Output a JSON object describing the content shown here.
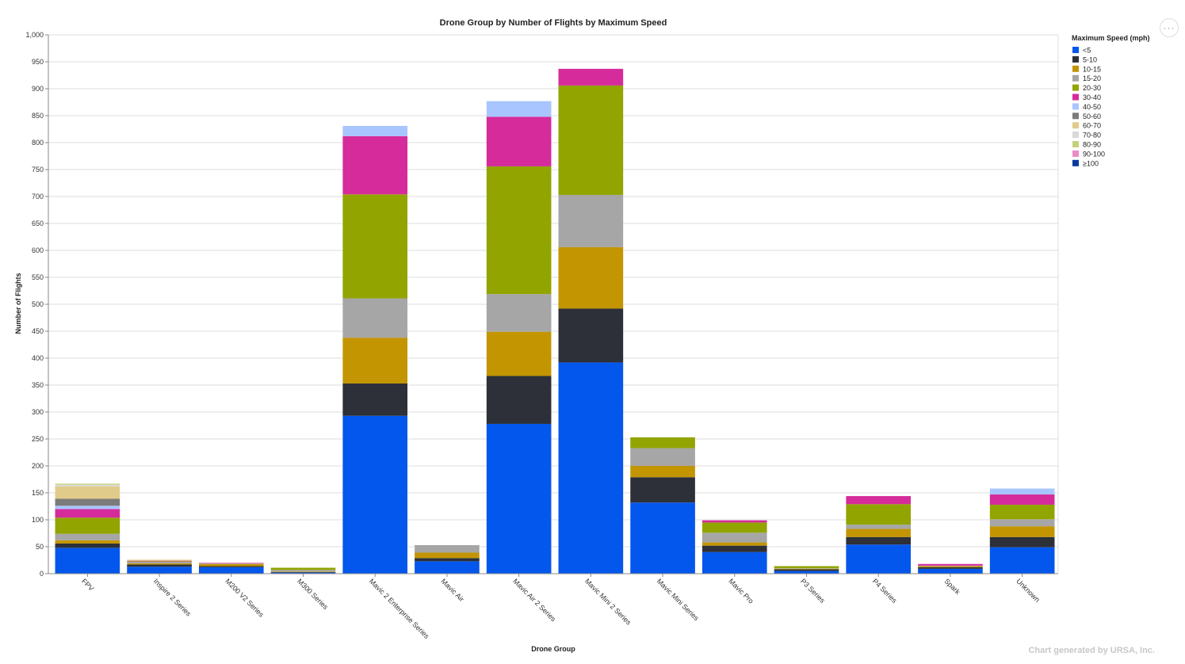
{
  "more_button": {
    "label": "···",
    "icon": "more-horizontal-icon"
  },
  "credit": "Chart generated by URSA, Inc.",
  "chart_data": {
    "type": "bar",
    "stacked": true,
    "title": "Drone Group by Number of Flights by Maximum Speed",
    "xlabel": "Drone Group",
    "ylabel": "Number of Flights",
    "ylim": [
      0,
      1000
    ],
    "yticks": [
      0,
      50,
      100,
      150,
      200,
      250,
      300,
      350,
      400,
      450,
      500,
      550,
      600,
      650,
      700,
      750,
      800,
      850,
      900,
      950,
      1000
    ],
    "ytick_labels": [
      "0",
      "50",
      "100",
      "150",
      "200",
      "250",
      "300",
      "350",
      "400",
      "450",
      "500",
      "550",
      "600",
      "650",
      "700",
      "750",
      "800",
      "850",
      "900",
      "950",
      "1,000"
    ],
    "grid": true,
    "legend": {
      "title": "Maximum Speed (mph)",
      "placement": "right"
    },
    "categories": [
      "FPV",
      "Inspire 2 Series",
      "M200 V2 Series",
      "M300 Series",
      "Mavic 2 Enterprise Series",
      "Mavic Air",
      "Mavic Air 2 Series",
      "Mavic Mini 2 Series",
      "Mavic Mini Series",
      "Mavic Pro",
      "P3 Series",
      "P4 Series",
      "Spark",
      "Unknown"
    ],
    "series": [
      {
        "name": "<5",
        "color": "#0457ec",
        "values": [
          48,
          13,
          12,
          2,
          293,
          23,
          278,
          392,
          132,
          40,
          5,
          54,
          9,
          49
        ]
      },
      {
        "name": "5-10",
        "color": "#2d3038",
        "values": [
          8,
          4,
          2,
          1,
          60,
          6,
          89,
          100,
          47,
          12,
          3,
          14,
          3,
          19
        ]
      },
      {
        "name": "10-15",
        "color": "#c39500",
        "values": [
          6,
          2,
          4,
          1,
          85,
          10,
          82,
          114,
          21,
          6,
          1,
          15,
          2,
          20
        ]
      },
      {
        "name": "15-20",
        "color": "#a6a6a6",
        "values": [
          12,
          3,
          1,
          3,
          73,
          14,
          70,
          97,
          33,
          18,
          1,
          8,
          1,
          13
        ]
      },
      {
        "name": "20-30",
        "color": "#92a400",
        "values": [
          30,
          1,
          0,
          4,
          193,
          0,
          237,
          203,
          20,
          19,
          4,
          38,
          0,
          27
        ]
      },
      {
        "name": "30-40",
        "color": "#d52b9b",
        "values": [
          16,
          1,
          1,
          0,
          108,
          0,
          92,
          31,
          0,
          4,
          0,
          15,
          3,
          19
        ]
      },
      {
        "name": "40-50",
        "color": "#a8c5ff",
        "values": [
          6,
          0,
          0,
          0,
          19,
          0,
          29,
          0,
          0,
          0,
          0,
          0,
          0,
          11
        ]
      },
      {
        "name": "50-60",
        "color": "#7b7b7b",
        "values": [
          13,
          0,
          0,
          0,
          0,
          0,
          0,
          0,
          0,
          0,
          0,
          0,
          0,
          0
        ]
      },
      {
        "name": "60-70",
        "color": "#e1cb8b",
        "values": [
          23,
          2,
          0,
          0,
          0,
          0,
          0,
          0,
          0,
          0,
          0,
          0,
          0,
          0
        ]
      },
      {
        "name": "70-80",
        "color": "#d9d9d9",
        "values": [
          3,
          0,
          0,
          0,
          0,
          0,
          0,
          0,
          0,
          0,
          0,
          0,
          0,
          0
        ]
      },
      {
        "name": "80-90",
        "color": "#c5cf7c",
        "values": [
          2,
          0,
          0,
          0,
          0,
          0,
          0,
          0,
          0,
          0,
          0,
          0,
          0,
          0
        ]
      },
      {
        "name": "90-100",
        "color": "#e98cc8",
        "values": [
          0,
          0,
          0,
          0,
          0,
          0,
          0,
          0,
          0,
          0,
          0,
          0,
          0,
          0
        ]
      },
      {
        "name": "≥100",
        "color": "#0a3a9c",
        "values": [
          0,
          0,
          0,
          0,
          0,
          0,
          0,
          0,
          0,
          0,
          0,
          0,
          0,
          0
        ]
      }
    ]
  }
}
